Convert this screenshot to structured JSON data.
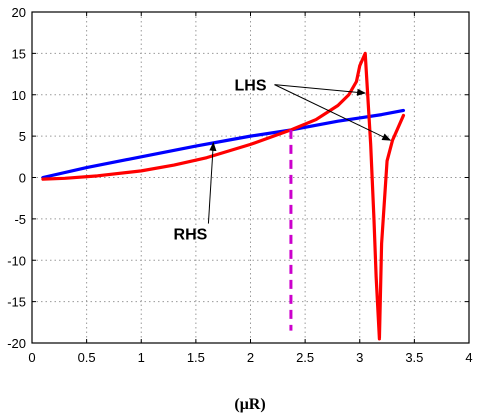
{
  "chart_data": {
    "type": "line",
    "title": "",
    "xlabel": "(μR)",
    "ylabel": "",
    "xlim": [
      0,
      4
    ],
    "ylim": [
      -20,
      20
    ],
    "xticks": [
      0,
      0.5,
      1,
      1.5,
      2,
      2.5,
      3,
      3.5,
      4
    ],
    "yticks": [
      -20,
      -15,
      -10,
      -5,
      0,
      5,
      10,
      15,
      20
    ],
    "xtick_labels": [
      "0",
      "0.5",
      "1",
      "1.5",
      "2",
      "2.5",
      "3",
      "3.5",
      "4"
    ],
    "ytick_labels": [
      "-20",
      "-15",
      "-10",
      "-5",
      "0",
      "5",
      "10",
      "15",
      "20"
    ],
    "grid": true,
    "series": [
      {
        "color": "#0000ff",
        "x": [
          0.1,
          0.5,
          1.0,
          1.5,
          2.0,
          2.37,
          2.8,
          3.0,
          3.2,
          3.4
        ],
        "y": [
          0.0,
          1.2,
          2.5,
          3.8,
          5.0,
          5.75,
          6.8,
          7.2,
          7.6,
          8.1
        ]
      },
      {
        "color": "#ff0000",
        "x": [
          0.1,
          0.3,
          0.6,
          1.0,
          1.3,
          1.6,
          2.0,
          2.37,
          2.6,
          2.8,
          2.9,
          2.97,
          3.0,
          3.05,
          3.1,
          3.13,
          3.15,
          3.18,
          3.2,
          3.25,
          3.3,
          3.35,
          3.4
        ],
        "y": [
          -0.2,
          -0.1,
          0.2,
          0.8,
          1.5,
          2.4,
          4.0,
          5.75,
          7.0,
          8.7,
          10.0,
          11.6,
          13.5,
          15.0,
          4.0,
          -5.0,
          -12.0,
          -19.5,
          -8.0,
          2.0,
          4.5,
          6.0,
          7.5
        ]
      }
    ],
    "vline": {
      "x": 2.37,
      "y_from": -18.5,
      "y_to": 5.75,
      "color": "#cc00cc",
      "style": "dashed"
    },
    "annotations": [
      {
        "label": "LHS",
        "text_at": [
          2.0,
          10.5
        ],
        "arrows_to": [
          [
            3.05,
            10.2
          ],
          [
            3.28,
            4.5
          ]
        ]
      },
      {
        "label": "RHS",
        "text_at": [
          1.45,
          -7.5
        ],
        "arrows_to": [
          [
            1.66,
            4.2
          ]
        ]
      }
    ]
  }
}
